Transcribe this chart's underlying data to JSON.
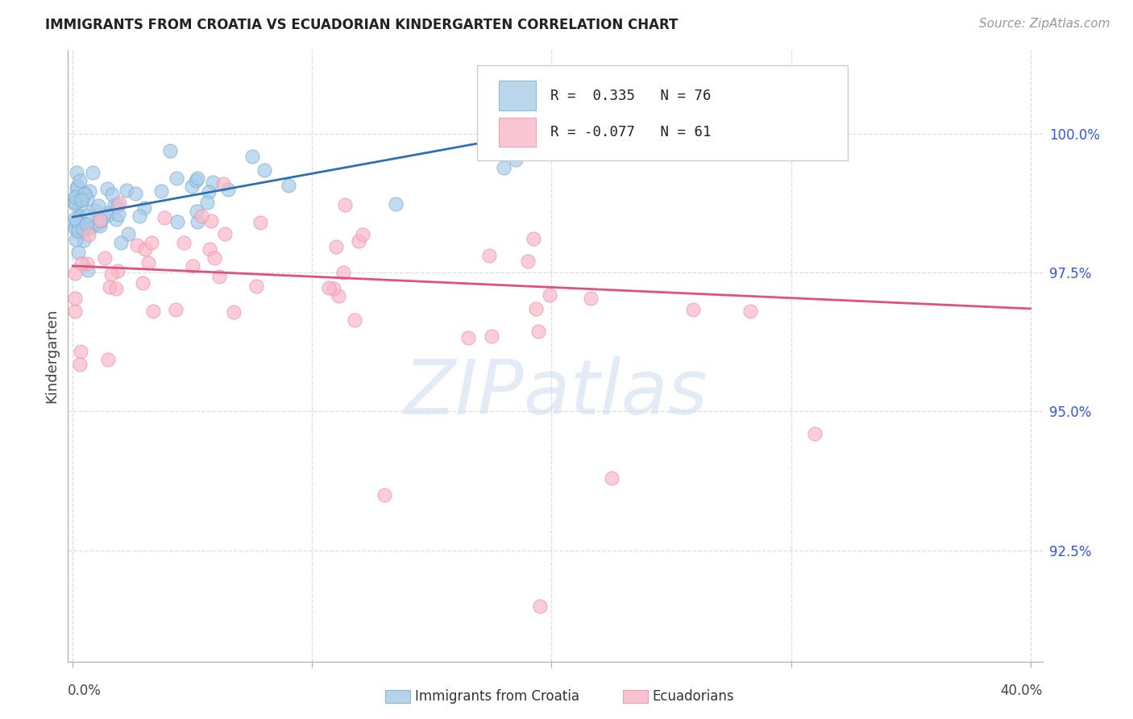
{
  "title": "IMMIGRANTS FROM CROATIA VS ECUADORIAN KINDERGARTEN CORRELATION CHART",
  "source": "Source: ZipAtlas.com",
  "ylabel": "Kindergarten",
  "ylim": [
    90.5,
    101.5
  ],
  "xlim": [
    -0.002,
    0.405
  ],
  "blue_R": 0.335,
  "blue_N": 76,
  "pink_R": -0.077,
  "pink_N": 61,
  "blue_color": "#a8cce8",
  "pink_color": "#f9b8c8",
  "blue_edge_color": "#7aafd4",
  "pink_edge_color": "#f090aa",
  "blue_line_color": "#3070b0",
  "pink_line_color": "#e05080",
  "legend_label_blue": "Immigrants from Croatia",
  "legend_label_pink": "Ecuadorians",
  "blue_line_x0": 0.0,
  "blue_line_x1": 0.23,
  "blue_line_y0": 98.5,
  "blue_line_y1": 100.3,
  "pink_line_x0": 0.0,
  "pink_line_x1": 0.4,
  "pink_line_y0": 97.62,
  "pink_line_y1": 96.85,
  "background_color": "#ffffff",
  "grid_color": "#dddddd",
  "ytick_vals": [
    92.5,
    95.0,
    97.5,
    100.0
  ],
  "ytick_labels": [
    "92.5%",
    "95.0%",
    "97.5%",
    "100.0%"
  ],
  "xtick_labels_pos": [
    0.0,
    0.4
  ],
  "xtick_labels_text": [
    "0.0%",
    "40.0%"
  ],
  "watermark": "ZIPatlas",
  "title_fontsize": 12,
  "source_fontsize": 11
}
